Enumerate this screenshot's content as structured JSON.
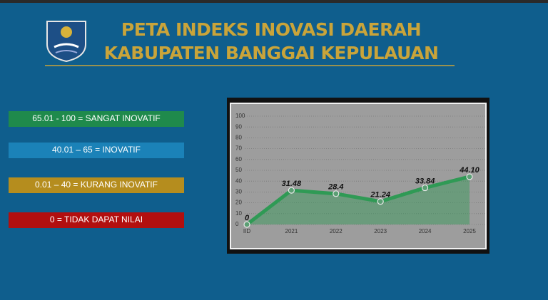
{
  "header": {
    "title_line1": "PETA INDEKS INOVASI DAERAH",
    "title_line2": "KABUPATEN BANGGAI KEPULAUAN"
  },
  "legend_items": [
    "65.01 - 100 = SANGAT INOVATIF",
    "40.01 – 65 = INOVATIF",
    "0.01 – 40 = KURANG INOVATIF",
    "0 = TIDAK DAPAT NILAI"
  ],
  "chart_data": {
    "type": "line",
    "categories": [
      "IID",
      "2021",
      "2022",
      "2023",
      "2024",
      "2025"
    ],
    "values": [
      0,
      31.48,
      28.4,
      21.24,
      33.84,
      44.1
    ],
    "value_labels": [
      "0",
      "31.48",
      "28.4",
      "21.24",
      "33.84",
      "44.10"
    ],
    "color": "#2f9a55",
    "ylim": [
      0,
      100
    ],
    "yticks": [
      0,
      10,
      20,
      30,
      40,
      50,
      60,
      70,
      80,
      90,
      100
    ],
    "grid": true
  }
}
